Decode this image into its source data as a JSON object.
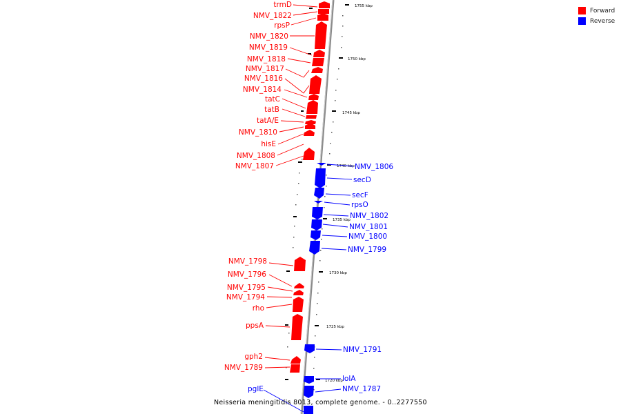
{
  "legend": {
    "forward": {
      "label": "Forward",
      "color": "#ff0000"
    },
    "reverse": {
      "label": "Reverse",
      "color": "#0000ff"
    }
  },
  "caption": "Neisseria meningitidis 8013, complete genome. - 0..2277550",
  "scale_labels": [
    "1755 kbp",
    "1750 kbp",
    "1745 kbp",
    "1740 kbp",
    "1735 kbp",
    "1730 kbp",
    "1725 kbp",
    "1720 kbp"
  ],
  "genes": {
    "forward": [
      "trmD",
      "NMV_1822",
      "rpsP",
      "NMV_1820",
      "NMV_1819",
      "NMV_1818",
      "NMV_1817",
      "NMV_1816",
      "NMV_1814",
      "tatC",
      "tatB",
      "tatA/E",
      "NMV_1810",
      "hisE",
      "NMV_1808",
      "NMV_1807",
      "NMV_1798",
      "NMV_1796",
      "NMV_1795",
      "NMV_1794",
      "rho",
      "ppsA",
      "gph2",
      "NMV_1789"
    ],
    "reverse": [
      "NMV_1806",
      "secD",
      "secF",
      "rpsO",
      "NMV_1802",
      "NMV_1801",
      "NMV_1800",
      "NMV_1799",
      "NMV_1791",
      "lolA",
      "NMV_1787",
      "pglE"
    ]
  }
}
